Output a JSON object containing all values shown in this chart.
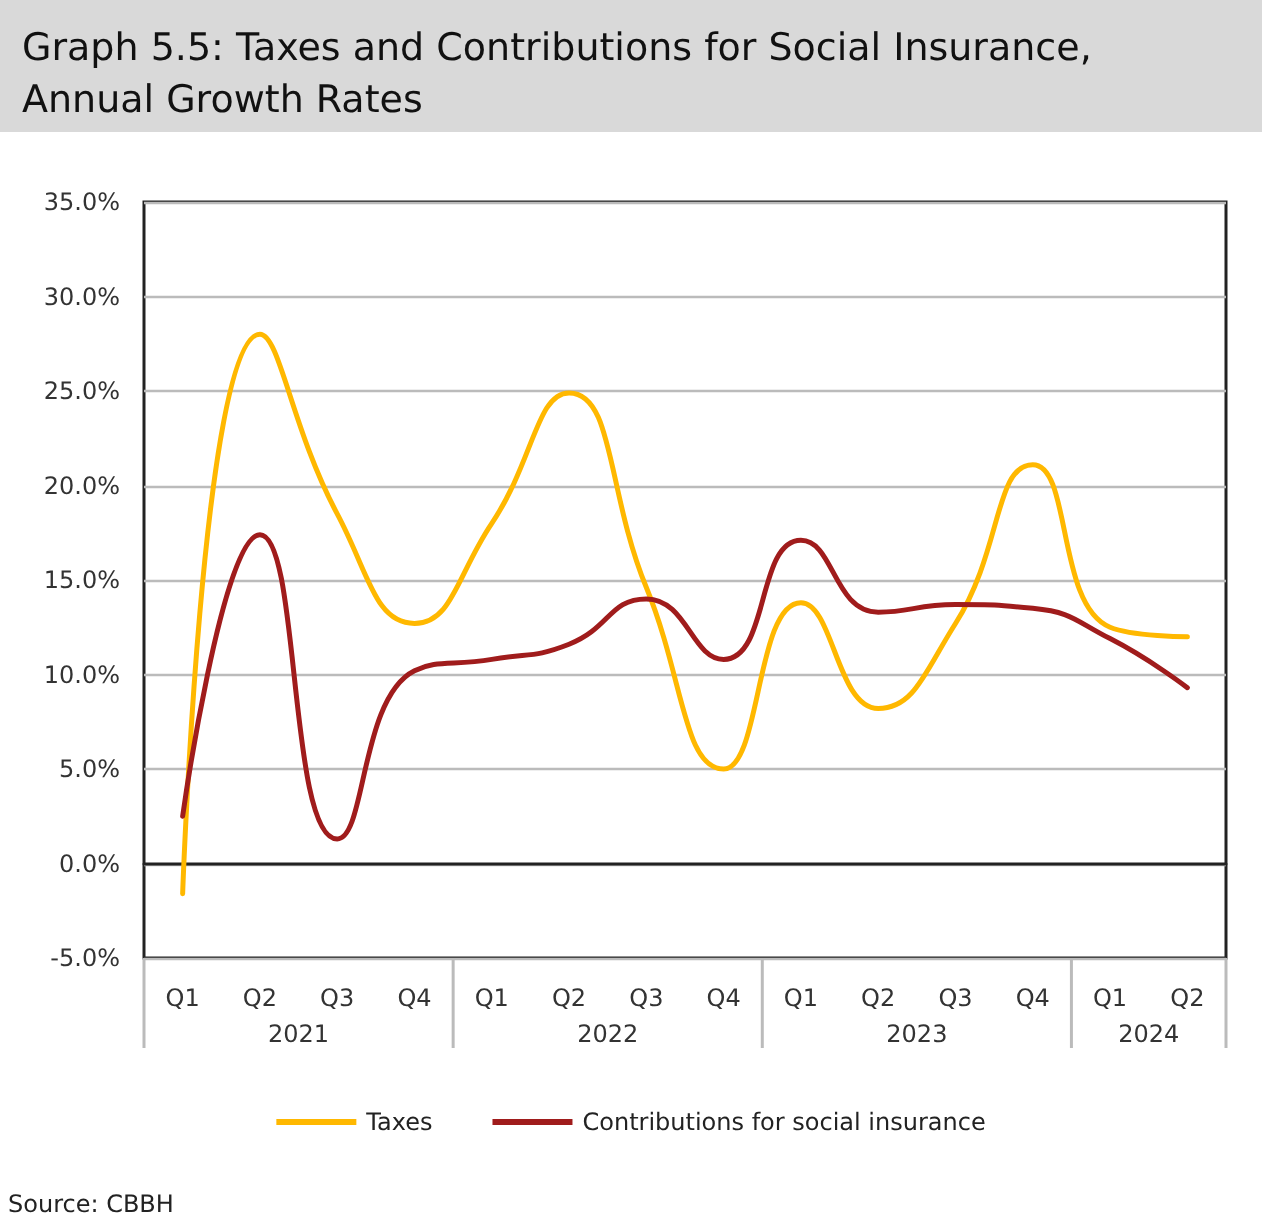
{
  "chart_data": {
    "type": "line",
    "title": "Graph 5.5: Taxes and Contributions for Social Insurance, Annual Growth Rates",
    "categories": [
      "Q1",
      "Q2",
      "Q3",
      "Q4",
      "Q1",
      "Q2",
      "Q3",
      "Q4",
      "Q1",
      "Q2",
      "Q3",
      "Q4",
      "Q1",
      "Q2"
    ],
    "series": [
      {
        "name": "Taxes",
        "color": "#ffb800",
        "values": [
          -1.6,
          28.0,
          18.5,
          12.7,
          18.0,
          24.9,
          14.6,
          5.0,
          13.8,
          8.2,
          12.7,
          21.1,
          12.5,
          12.0
        ]
      },
      {
        "name": "Contributions for social insurance",
        "color": "#a01c1c",
        "values": [
          2.5,
          17.4,
          1.3,
          10.2,
          10.8,
          11.6,
          14.0,
          10.8,
          17.1,
          13.3,
          13.7,
          13.5,
          11.9,
          9.3
        ]
      }
    ],
    "ylim": [
      -5,
      35
    ],
    "yticks": [
      {
        "value": -5,
        "label": "-5.0%"
      },
      {
        "value": 0,
        "label": "0.0%"
      },
      {
        "value": 5,
        "label": "5.0%"
      },
      {
        "value": 10,
        "label": "10.0%"
      },
      {
        "value": 15,
        "label": "15.0%"
      },
      {
        "value": 20,
        "label": "20.0%"
      },
      {
        "value": 25,
        "label": "25.0%"
      },
      {
        "value": 30,
        "label": "30.0%"
      },
      {
        "value": 35,
        "label": "35.0%"
      }
    ],
    "grid": "y",
    "legend": "bottom",
    "marker": "none",
    "line_style": "solid",
    "annotations": [
      "2021",
      "2022",
      "2023",
      "2024",
      "Source: CBBH"
    ]
  }
}
